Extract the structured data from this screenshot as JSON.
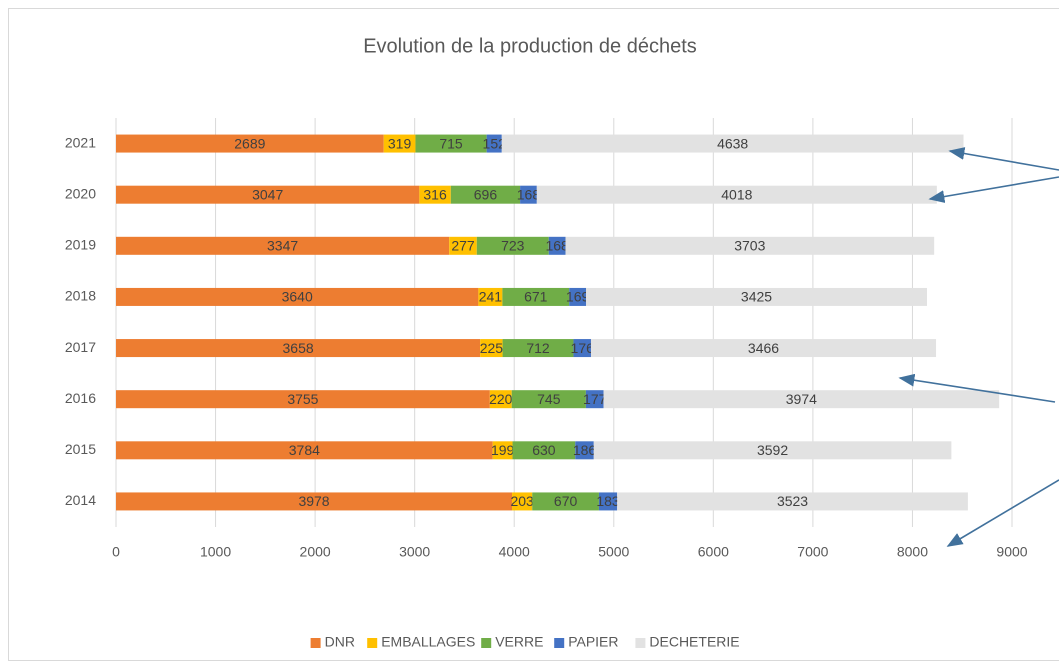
{
  "chart_data": {
    "type": "stacked-bar-horizontal",
    "title": "Evolution de la production de déchets",
    "categories": [
      "2021",
      "2020",
      "2019",
      "2018",
      "2017",
      "2016",
      "2015",
      "2014"
    ],
    "series": [
      {
        "name": "DNR",
        "color": "#ed7d31",
        "values": [
          2689,
          3047,
          3347,
          3640,
          3658,
          3755,
          3784,
          3978
        ]
      },
      {
        "name": "EMBALLAGES",
        "color": "#ffc000",
        "values": [
          319,
          316,
          277,
          241,
          225,
          220,
          199,
          203
        ]
      },
      {
        "name": "VERRE",
        "color": "#70ad47",
        "values": [
          715,
          696,
          723,
          671,
          712,
          745,
          630,
          670
        ]
      },
      {
        "name": "PAPIER",
        "color": "#4472c4",
        "values": [
          152,
          168,
          168,
          169,
          176,
          177,
          186,
          183
        ]
      },
      {
        "name": "DECHETERIE",
        "color": "#e2e2e2",
        "values": [
          4638,
          4018,
          3703,
          3425,
          3466,
          3974,
          3592,
          3523
        ]
      }
    ],
    "xlim": [
      0,
      9000
    ],
    "xticks": [
      0,
      1000,
      2000,
      3000,
      4000,
      5000,
      6000,
      7000,
      8000,
      9000
    ],
    "grid": true,
    "legend": "bottom"
  }
}
